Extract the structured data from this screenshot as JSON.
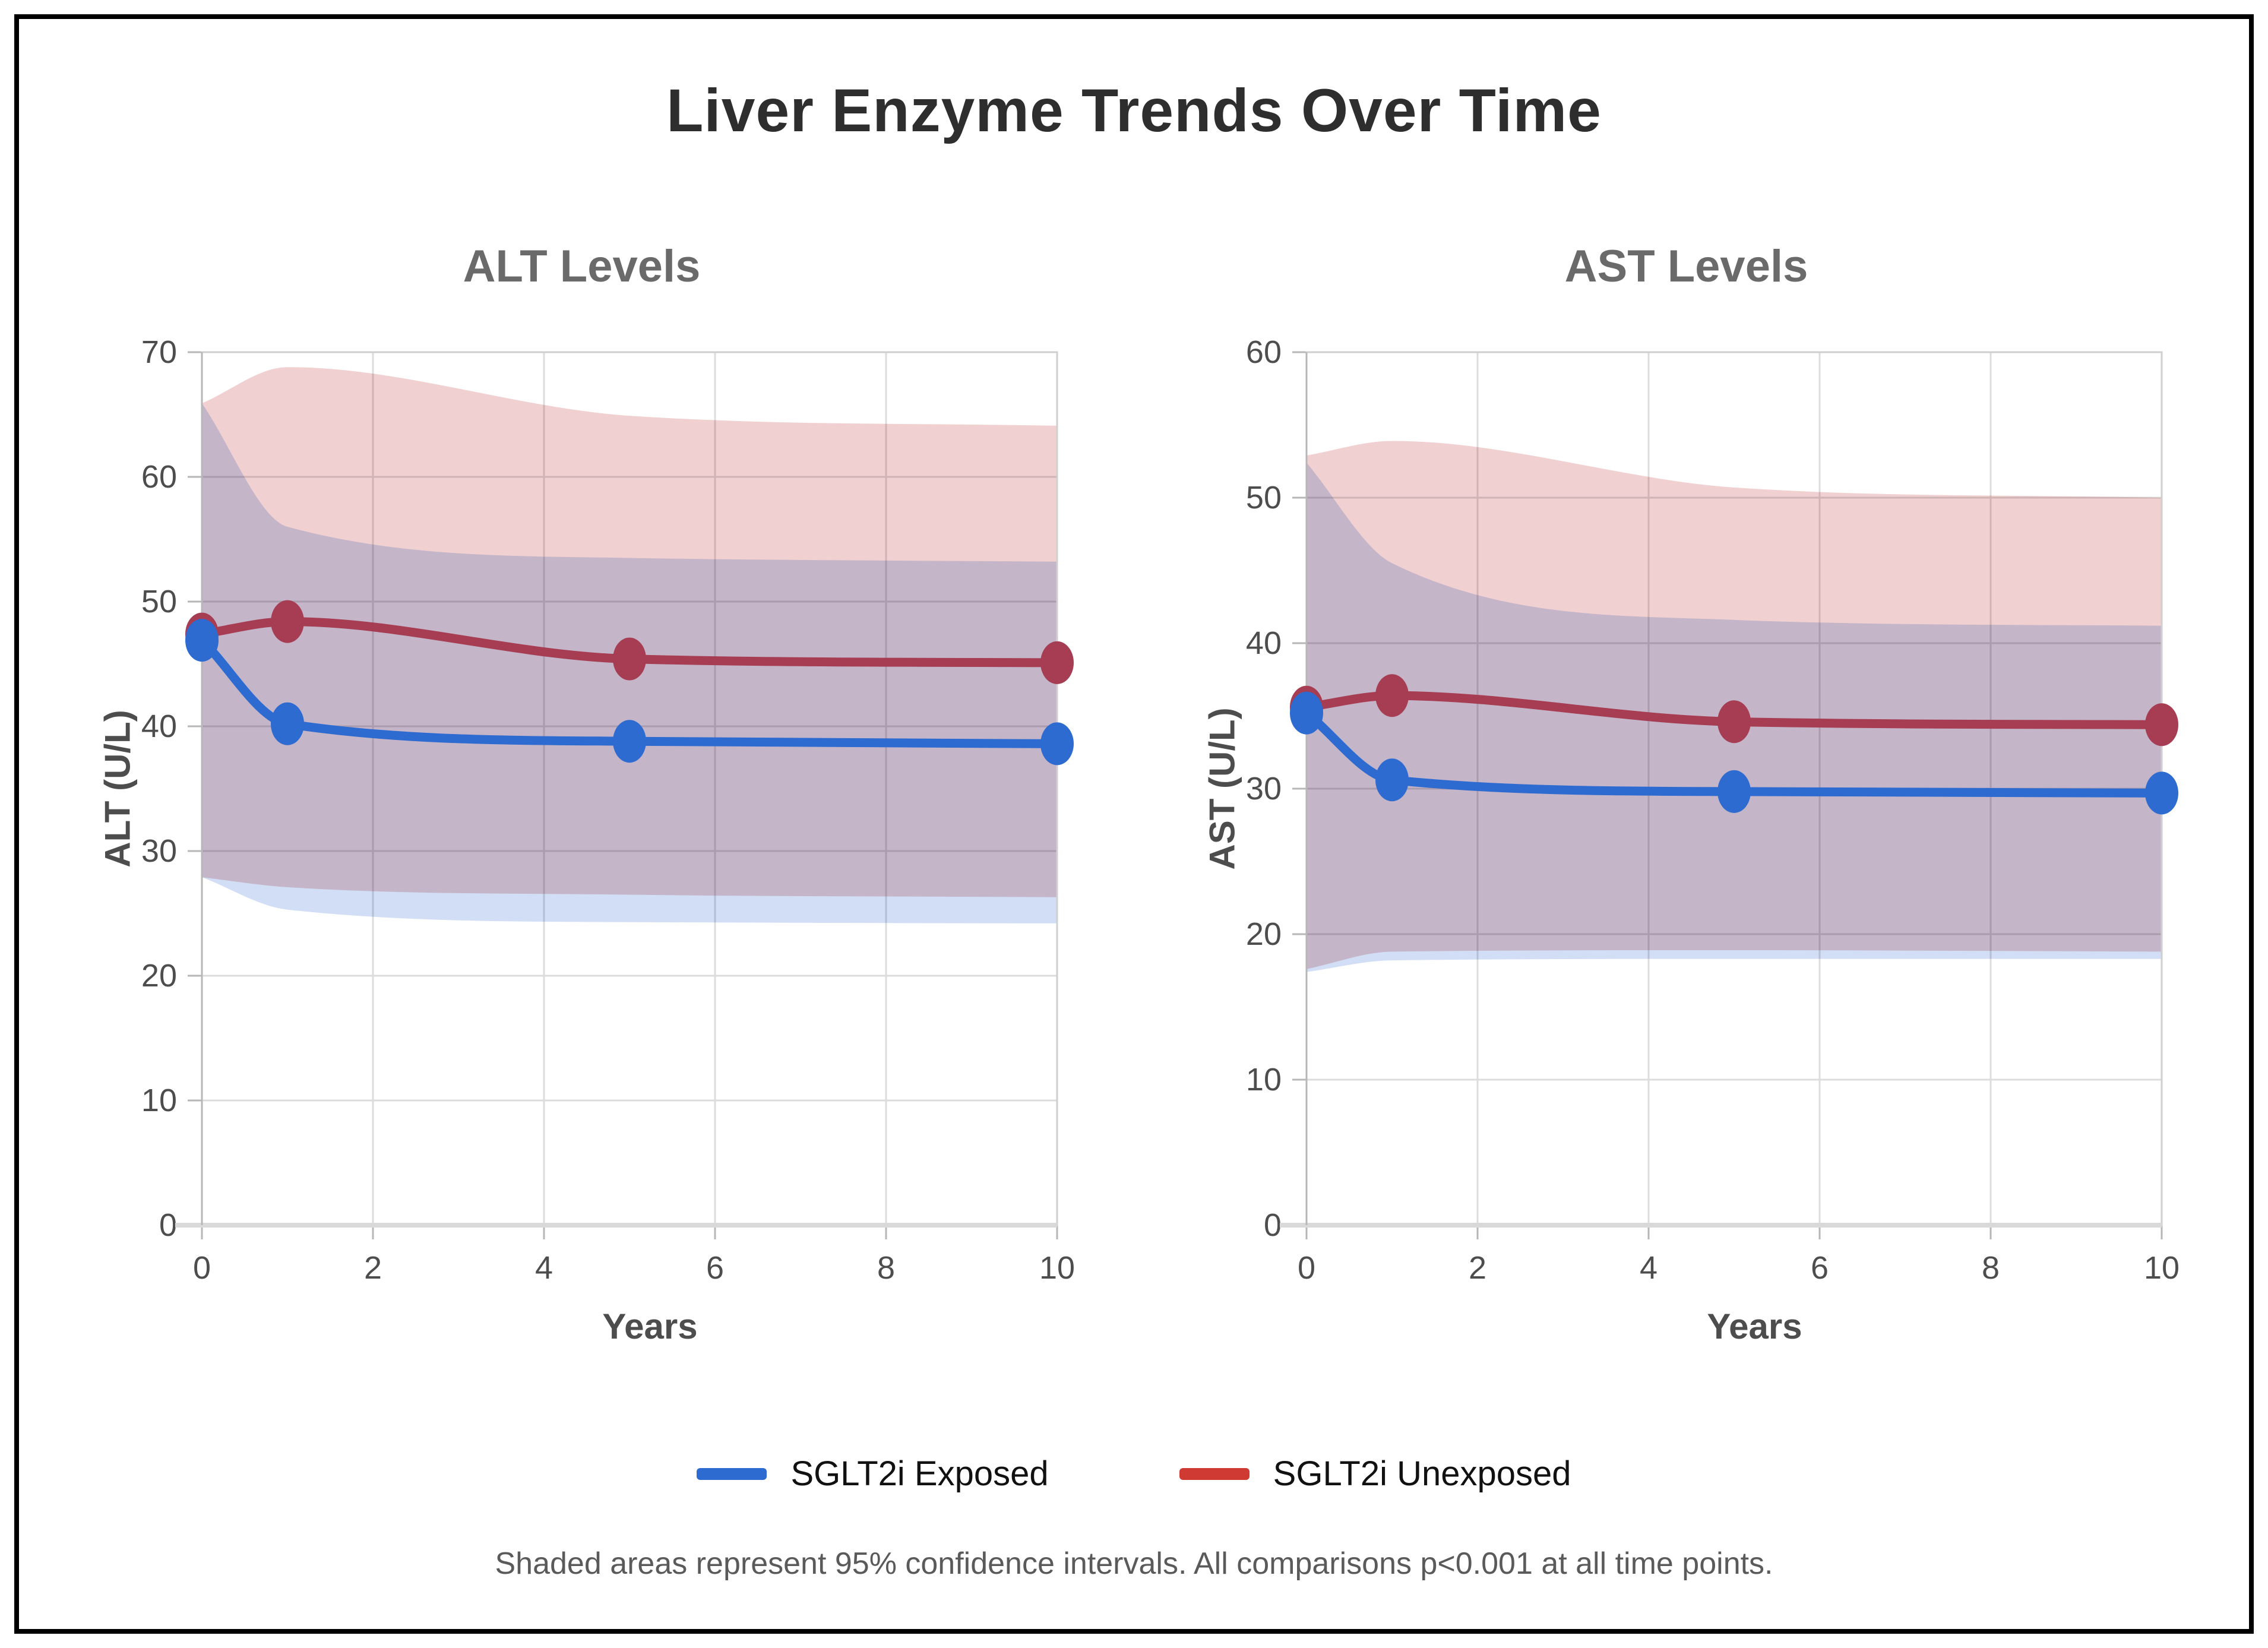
{
  "title": "Liver Enzyme Trends Over Time",
  "legend": [
    {
      "label": "SGLT2i Exposed",
      "color": "#2e6bd0"
    },
    {
      "label": "SGLT2i Unexposed",
      "color": "#cf3a33"
    }
  ],
  "footnote": "Shaded areas represent 95% confidence intervals. All comparisons p<0.001 at all time points.",
  "colors": {
    "grid": "#dcdcdc",
    "plot_border": "#cfcfcf",
    "axis_line": "#b7b7b7",
    "baseline": "#d9d9d9",
    "tick_text": "#4d4d4d"
  },
  "chart_data": [
    {
      "type": "line",
      "title": "ALT Levels",
      "xlabel": "Years",
      "ylabel": "ALT (U/L)",
      "xlim": [
        0,
        10
      ],
      "ylim": [
        0,
        70
      ],
      "xticks": [
        0,
        2,
        4,
        6,
        8,
        10
      ],
      "yticks": [
        0,
        10,
        20,
        30,
        40,
        50,
        60,
        70
      ],
      "grid": true,
      "legend_position": "none",
      "x": [
        0,
        1,
        5,
        10
      ],
      "series": [
        {
          "name": "SGLT2i Exposed",
          "line_color": "#2e6bd0",
          "band_color": "rgba(46,107,208,0.22)",
          "mean": [
            46.9,
            40.2,
            38.8,
            38.6
          ],
          "ci_lower": [
            27.9,
            25.3,
            24.3,
            24.2
          ],
          "ci_upper": [
            65.9,
            56.0,
            53.5,
            53.2
          ]
        },
        {
          "name": "SGLT2i Unexposed",
          "line_color": "#a63d52",
          "band_color": "rgba(205,85,90,0.28)",
          "mean": [
            47.4,
            48.4,
            45.4,
            45.1
          ],
          "ci_lower": [
            27.9,
            27.1,
            26.5,
            26.3
          ],
          "ci_upper": [
            65.9,
            68.8,
            64.9,
            64.1
          ]
        }
      ]
    },
    {
      "type": "line",
      "title": "AST Levels",
      "xlabel": "Years",
      "ylabel": "AST (U/L)",
      "xlim": [
        0,
        10
      ],
      "ylim": [
        0,
        60
      ],
      "xticks": [
        0,
        2,
        4,
        6,
        8,
        10
      ],
      "yticks": [
        0,
        10,
        20,
        30,
        40,
        50,
        60
      ],
      "grid": true,
      "legend_position": "none",
      "x": [
        0,
        1,
        5,
        10
      ],
      "series": [
        {
          "name": "SGLT2i Exposed",
          "line_color": "#2e6bd0",
          "band_color": "rgba(46,107,208,0.22)",
          "mean": [
            35.2,
            30.6,
            29.8,
            29.7
          ],
          "ci_lower": [
            17.4,
            18.2,
            18.3,
            18.3
          ],
          "ci_upper": [
            52.4,
            45.5,
            41.6,
            41.2
          ]
        },
        {
          "name": "SGLT2i Unexposed",
          "line_color": "#a63d52",
          "band_color": "rgba(205,85,90,0.28)",
          "mean": [
            35.6,
            36.4,
            34.6,
            34.4
          ],
          "ci_lower": [
            17.6,
            18.8,
            18.9,
            18.8
          ],
          "ci_upper": [
            52.9,
            53.9,
            50.7,
            50.0
          ]
        }
      ]
    }
  ]
}
